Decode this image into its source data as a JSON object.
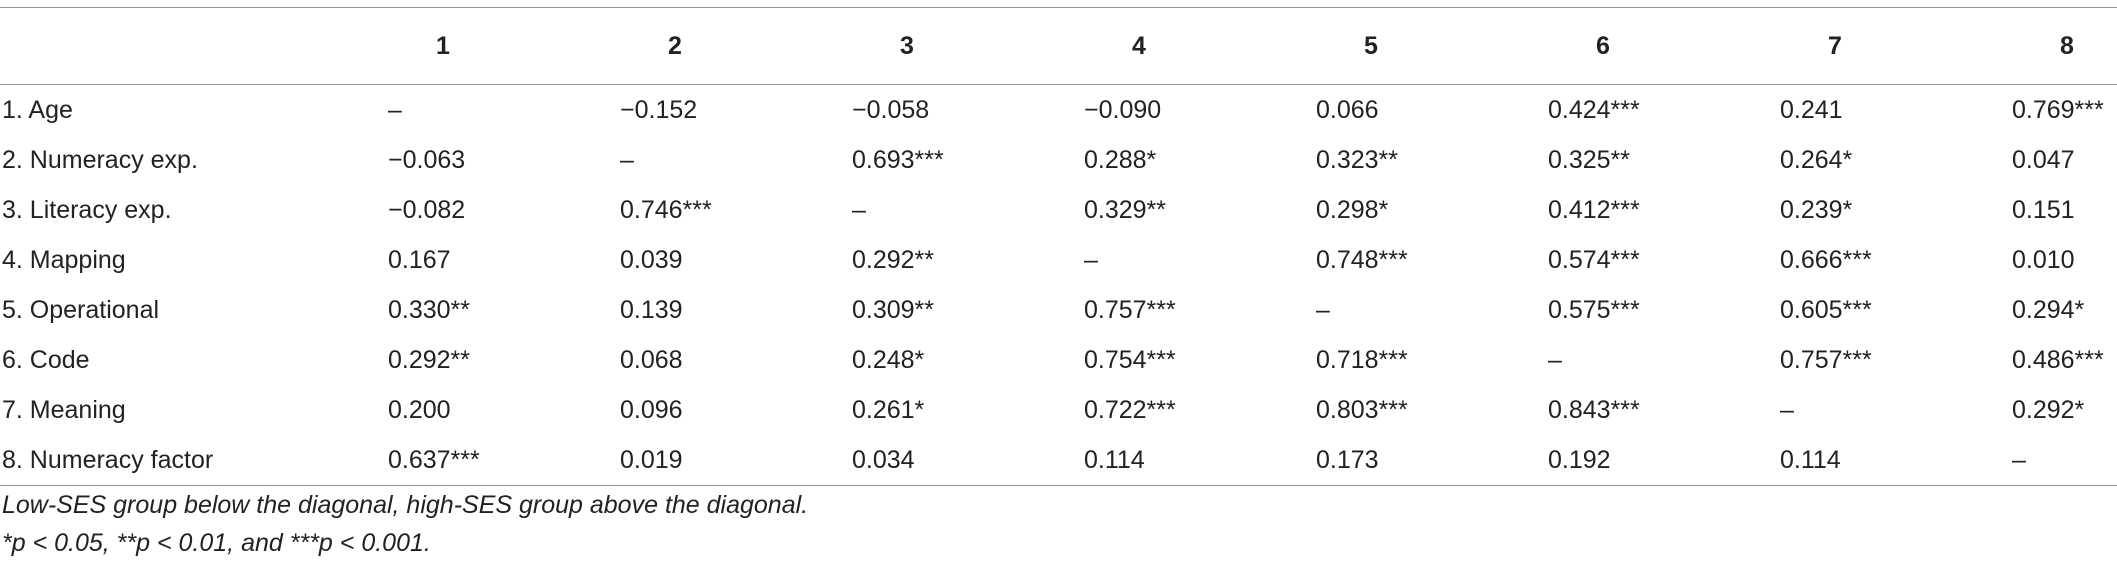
{
  "table": {
    "columns": [
      "1",
      "2",
      "3",
      "4",
      "5",
      "6",
      "7",
      "8"
    ],
    "rows": [
      {
        "label": "1. Age",
        "cells": [
          "–",
          "−0.152",
          "−0.058",
          "−0.090",
          "0.066",
          "0.424***",
          "0.241",
          "0.769***"
        ]
      },
      {
        "label": "2. Numeracy exp.",
        "cells": [
          "−0.063",
          "–",
          "0.693***",
          "0.288*",
          "0.323**",
          "0.325**",
          "0.264*",
          "0.047"
        ]
      },
      {
        "label": "3. Literacy exp.",
        "cells": [
          "−0.082",
          "0.746***",
          "–",
          "0.329**",
          "0.298*",
          "0.412***",
          "0.239*",
          "0.151"
        ]
      },
      {
        "label": "4. Mapping",
        "cells": [
          "0.167",
          "0.039",
          "0.292**",
          "–",
          "0.748***",
          "0.574***",
          "0.666***",
          "0.010"
        ]
      },
      {
        "label": "5. Operational",
        "cells": [
          "0.330**",
          "0.139",
          "0.309**",
          "0.757***",
          "–",
          "0.575***",
          "0.605***",
          "0.294*"
        ]
      },
      {
        "label": "6. Code",
        "cells": [
          "0.292**",
          "0.068",
          "0.248*",
          "0.754***",
          "0.718***",
          "–",
          "0.757***",
          "0.486***"
        ]
      },
      {
        "label": "7. Meaning",
        "cells": [
          "0.200",
          "0.096",
          "0.261*",
          "0.722***",
          "0.803***",
          "0.843***",
          "–",
          "0.292*"
        ]
      },
      {
        "label": "8. Numeracy factor",
        "cells": [
          "0.637***",
          "0.019",
          "0.034",
          "0.114",
          "0.173",
          "0.192",
          "0.114",
          "–"
        ]
      }
    ]
  },
  "notes": [
    "Low-SES group below the diagonal, high-SES group above the diagonal.",
    "*p < 0.05, **p < 0.01, and ***p < 0.001."
  ]
}
